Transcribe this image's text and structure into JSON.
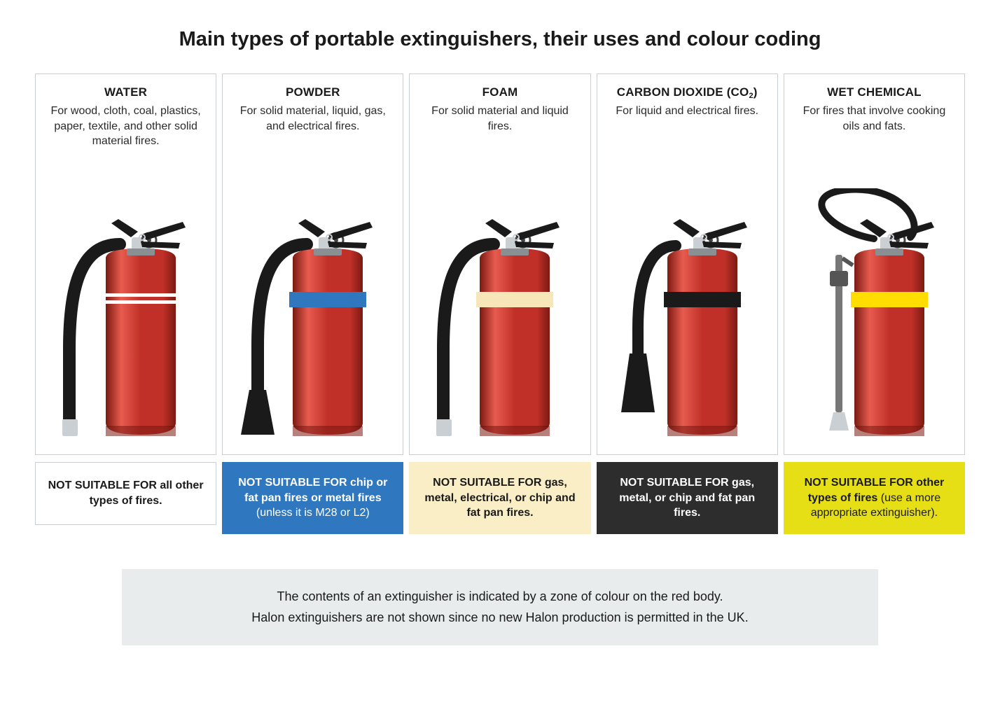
{
  "title": "Main types of portable extinguishers, their uses and colour coding",
  "background_color": "#ffffff",
  "text_color": "#1a1a1a",
  "card_border_color": "#c9cfd3",
  "footer_bg": "#e8ecec",
  "extinguisher_body_color": "#c03028",
  "extinguisher_body_dark": "#7a1a12",
  "extinguisher_body_highlight": "#e85b4f",
  "hose_color": "#1a1a1a",
  "handle_color": "#1a1a1a",
  "metal_color": "#c9cfd3",
  "columns": [
    {
      "type_label": "WATER",
      "type_html": "WATER",
      "desc": "For wood, cloth, coal, plastics, paper, textile, and other solid material fires.",
      "band_color": "#ffffff",
      "band_style": "double",
      "hose_style": "left_basic",
      "note_bg": "#ffffff",
      "note_fg": "#1a1a1a",
      "note_border": "#c9cfd3",
      "note_bold": "NOT SUITABLE FOR all other types of fires.",
      "note_light": ""
    },
    {
      "type_label": "POWDER",
      "type_html": "POWDER",
      "desc": "For solid material, liquid, gas, and electrical fires.",
      "band_color": "#2f78bf",
      "band_style": "single",
      "hose_style": "left_wide_nozzle",
      "note_bg": "#2f78bf",
      "note_fg": "#ffffff",
      "note_border": "#2f78bf",
      "note_bold": "NOT SUITABLE FOR chip or fat pan fires or metal fires",
      "note_light": " (unless it is M28 or L2)"
    },
    {
      "type_label": "FOAM",
      "type_html": "FOAM",
      "desc": "For solid material and liquid fires.",
      "band_color": "#f6e6b8",
      "band_style": "single",
      "hose_style": "left_basic",
      "note_bg": "#faeec6",
      "note_fg": "#1a1a1a",
      "note_border": "#faeec6",
      "note_bold": "NOT SUITABLE FOR gas, metal, electrical, or chip and fat pan fires.",
      "note_light": ""
    },
    {
      "type_label": "CARBON DIOXIDE (CO2)",
      "type_html": "CARBON DIOXIDE (CO<sub>2</sub>)",
      "desc": "For liquid and electrical fires.",
      "band_color": "#1a1a1a",
      "band_style": "single",
      "hose_style": "left_horn",
      "note_bg": "#2d2d2d",
      "note_fg": "#ffffff",
      "note_border": "#2d2d2d",
      "note_bold": "NOT SUITABLE FOR gas, metal, or chip and fat pan fires.",
      "note_light": ""
    },
    {
      "type_label": "WET CHEMICAL",
      "type_html": "WET CHEMICAL",
      "desc": "For fires that involve cooking oils and fats.",
      "band_color": "#ffdd00",
      "band_style": "single",
      "hose_style": "top_loop_lance",
      "note_bg": "#e7df15",
      "note_fg": "#1a1a1a",
      "note_border": "#e7df15",
      "note_bold": "NOT SUITABLE FOR other types of fires",
      "note_light": " (use a more appropriate extinguisher)."
    }
  ],
  "footer_line1": "The contents of an extinguisher is indicated by a zone of colour on the red body.",
  "footer_line2": "Halon extinguishers are not shown since no new Halon production is permitted in the UK."
}
